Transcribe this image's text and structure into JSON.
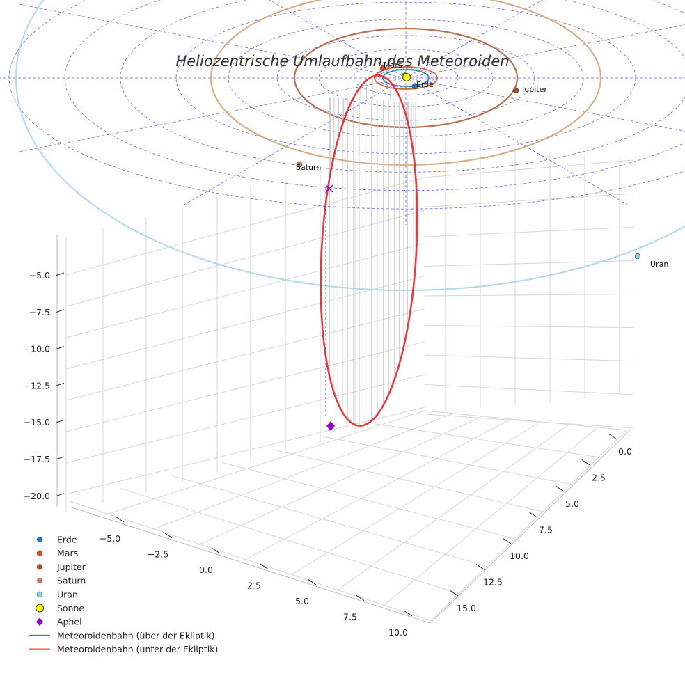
{
  "chart_data": {
    "type": "scatter",
    "title": "Heliozentrische Umlaufbahn des Meteoroiden",
    "projection": "3d",
    "grid": true,
    "legend_position": "bottom-left",
    "z_ticks": [
      "−5.0",
      "−7.5",
      "−10.0",
      "−12.5",
      "−15.0",
      "−17.5",
      "−20.0"
    ],
    "x_ticks": [
      "−5.0",
      "−2.5",
      "0.0",
      "2.5",
      "5.0",
      "7.5",
      "10.0"
    ],
    "y_ticks": [
      "0.0",
      "2.5",
      "5.0",
      "7.5",
      "10.0",
      "12.5",
      "15.0"
    ],
    "planets": [
      {
        "name": "Erde",
        "label": "Erde",
        "color": "#1f77b4",
        "orbit_color": "#1f77b4"
      },
      {
        "name": "Mars",
        "label": "Mars",
        "color": "#d2501e",
        "orbit_color": "#d2501e"
      },
      {
        "name": "Jupiter",
        "label": "Jupiter",
        "color": "#a0522d",
        "orbit_color": "#b06040"
      },
      {
        "name": "Saturn",
        "label": "Saturn",
        "color": "#c08060",
        "orbit_color": "#d2a77d"
      },
      {
        "name": "Uran",
        "label": "Uran",
        "color": "#87cedc",
        "orbit_color": "#add8e6"
      }
    ],
    "sun": {
      "name": "Sonne",
      "color": "#ffff00"
    },
    "aphel": {
      "name": "Aphel",
      "color": "#9400d3"
    },
    "series": [
      {
        "name": "Meteoroidenbahn (über der Ekliptik)",
        "color": "#2ca02c"
      },
      {
        "name": "Meteoroidenbahn (unter der Ekliptik)",
        "color": "#e31a1c"
      }
    ]
  },
  "legend": [
    {
      "label": "Erde",
      "marker": "circle",
      "color": "#1f77b4",
      "edge": "#1f77b4"
    },
    {
      "label": "Mars",
      "marker": "circle",
      "color": "#d2501e",
      "edge": "#d2501e"
    },
    {
      "label": "Jupiter",
      "marker": "circle",
      "color": "#a0522d",
      "edge": "#a0522d"
    },
    {
      "label": "Saturn",
      "marker": "circle",
      "color": "#c08060",
      "edge": "#c08060"
    },
    {
      "label": "Uran",
      "marker": "circle",
      "color": "#87cedc",
      "edge": "#4a8a9a"
    },
    {
      "label": "Sonne",
      "marker": "circle-big",
      "color": "#ffff00",
      "edge": "#333333"
    },
    {
      "label": "Aphel",
      "marker": "diamond",
      "color": "#9400d3",
      "edge": "#9400d3"
    },
    {
      "label": "Meteoroidenbahn (über der Ekliptik)",
      "marker": "line",
      "color": "#2ca02c"
    },
    {
      "label": "Meteoroidenbahn (unter der Ekliptik)",
      "marker": "line",
      "color": "#e31a1c"
    }
  ]
}
